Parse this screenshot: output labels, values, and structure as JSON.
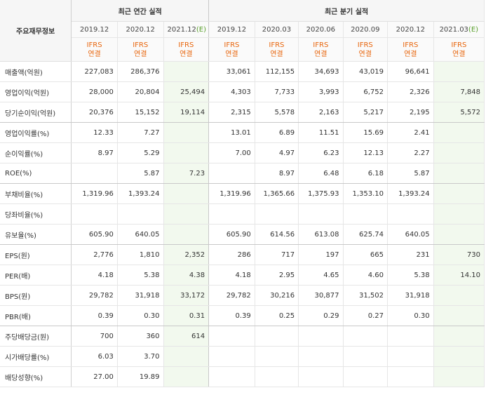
{
  "title": "주요재무정보",
  "groups": {
    "annual": "최근 연간 실적",
    "quarterly": "최근 분기 실적"
  },
  "annual_periods": [
    {
      "label": "2019.12",
      "est": ""
    },
    {
      "label": "2020.12",
      "est": ""
    },
    {
      "label": "2021.12",
      "est": "(E)"
    }
  ],
  "quarter_periods": [
    {
      "label": "2019.12",
      "est": ""
    },
    {
      "label": "2020.03",
      "est": ""
    },
    {
      "label": "2020.06",
      "est": ""
    },
    {
      "label": "2020.09",
      "est": ""
    },
    {
      "label": "2020.12",
      "est": ""
    },
    {
      "label": "2021.03",
      "est": "(E)"
    }
  ],
  "ifrs": {
    "line1": "IFRS",
    "line2": "연결"
  },
  "rows": [
    {
      "label": "매출액(억원)",
      "annual": [
        "227,083",
        "286,376",
        ""
      ],
      "quarterly": [
        "33,061",
        "112,155",
        "34,693",
        "43,019",
        "96,641",
        ""
      ]
    },
    {
      "label": "영업이익(억원)",
      "annual": [
        "28,000",
        "20,804",
        "25,494"
      ],
      "quarterly": [
        "4,303",
        "7,733",
        "3,993",
        "6,752",
        "2,326",
        "7,848"
      ]
    },
    {
      "label": "당기순이익(억원)",
      "annual": [
        "20,376",
        "15,152",
        "19,114"
      ],
      "quarterly": [
        "2,315",
        "5,578",
        "2,163",
        "5,217",
        "2,195",
        "5,572"
      ]
    },
    {
      "label": "영업이익률(%)",
      "annual": [
        "12.33",
        "7.27",
        ""
      ],
      "quarterly": [
        "13.01",
        "6.89",
        "11.51",
        "15.69",
        "2.41",
        ""
      ]
    },
    {
      "label": "순이익률(%)",
      "annual": [
        "8.97",
        "5.29",
        ""
      ],
      "quarterly": [
        "7.00",
        "4.97",
        "6.23",
        "12.13",
        "2.27",
        ""
      ]
    },
    {
      "label": "ROE(%)",
      "annual": [
        "",
        "5.87",
        "7.23"
      ],
      "quarterly": [
        "",
        "8.97",
        "6.48",
        "6.18",
        "5.87",
        ""
      ]
    },
    {
      "label": "부채비율(%)",
      "annual": [
        "1,319.96",
        "1,393.24",
        ""
      ],
      "quarterly": [
        "1,319.96",
        "1,365.66",
        "1,375.93",
        "1,353.10",
        "1,393.24",
        ""
      ]
    },
    {
      "label": "당좌비율(%)",
      "annual": [
        "",
        "",
        ""
      ],
      "quarterly": [
        "",
        "",
        "",
        "",
        "",
        ""
      ]
    },
    {
      "label": "유보율(%)",
      "annual": [
        "605.90",
        "640.05",
        ""
      ],
      "quarterly": [
        "605.90",
        "614.56",
        "613.08",
        "625.74",
        "640.05",
        ""
      ]
    },
    {
      "label": "EPS(원)",
      "annual": [
        "2,776",
        "1,810",
        "2,352"
      ],
      "quarterly": [
        "286",
        "717",
        "197",
        "665",
        "231",
        "730"
      ]
    },
    {
      "label": "PER(배)",
      "annual": [
        "4.18",
        "5.38",
        "4.38"
      ],
      "quarterly": [
        "4.18",
        "2.95",
        "4.65",
        "4.60",
        "5.38",
        "14.10"
      ]
    },
    {
      "label": "BPS(원)",
      "annual": [
        "29,782",
        "31,918",
        "33,172"
      ],
      "quarterly": [
        "29,782",
        "30,216",
        "30,877",
        "31,502",
        "31,918",
        ""
      ]
    },
    {
      "label": "PBR(배)",
      "annual": [
        "0.39",
        "0.30",
        "0.31"
      ],
      "quarterly": [
        "0.39",
        "0.25",
        "0.29",
        "0.27",
        "0.30",
        ""
      ]
    },
    {
      "label": "주당배당금(원)",
      "annual": [
        "700",
        "360",
        "614"
      ],
      "quarterly": [
        "",
        "",
        "",
        "",
        "",
        ""
      ]
    },
    {
      "label": "시가배당률(%)",
      "annual": [
        "6.03",
        "3.70",
        ""
      ],
      "quarterly": [
        "",
        "",
        "",
        "",
        "",
        ""
      ]
    },
    {
      "label": "배당성향(%)",
      "annual": [
        "27.00",
        "19.89",
        ""
      ],
      "quarterly": [
        "",
        "",
        "",
        "",
        "",
        ""
      ]
    }
  ]
}
